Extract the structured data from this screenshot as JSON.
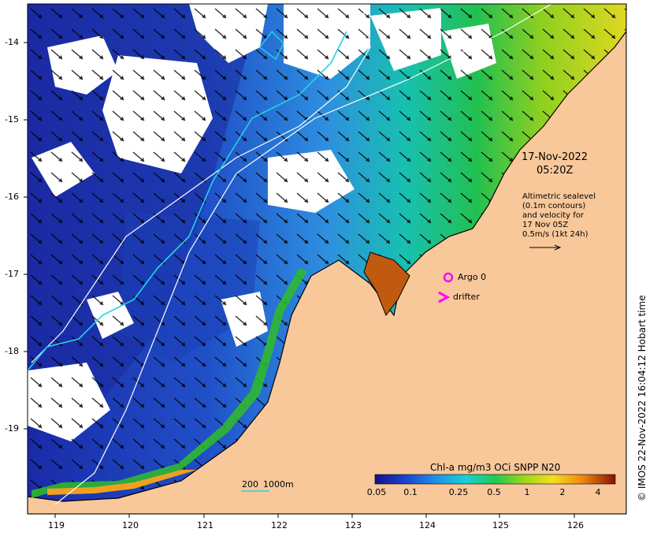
{
  "map": {
    "x_ticks": [
      "119",
      "120",
      "121",
      "122",
      "123",
      "124",
      "125",
      "126"
    ],
    "y_ticks": [
      "-14",
      "-15",
      "-16",
      "-17",
      "-18",
      "-19"
    ],
    "date_line1": "17-Nov-2022",
    "date_line2": "05:20Z",
    "altimetry_note": [
      "Altimetric sealevel",
      "(0.1m contours)",
      "and velocity for",
      "17 Nov 05Z",
      "0.5m/s (1kt 24h)"
    ],
    "legend": {
      "argo": "Argo 0",
      "drifter": "drifter"
    },
    "scale_labels": {
      "a": "200",
      "b": "1000m"
    },
    "colorbar": {
      "title": "Chl-a mg/m3 OCi SNPP N20",
      "ticks": [
        "0.05",
        "0.1",
        "0.25",
        "0.5",
        "1",
        "2",
        "4"
      ]
    },
    "credit": "© IMOS 22-Nov-2022 16:04:12 Hobart time",
    "colors": {
      "land": "#f8c89a",
      "marker": "#ff00ff",
      "contour": "#22d3e6",
      "isobath": "#ffffff"
    }
  }
}
